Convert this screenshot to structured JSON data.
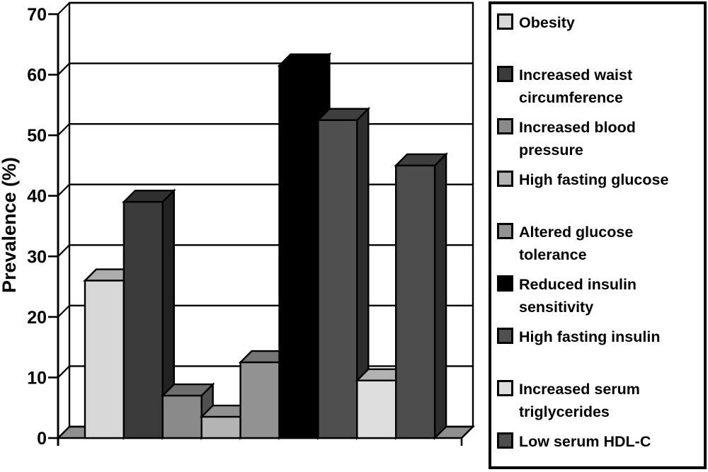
{
  "chart_data": {
    "type": "bar",
    "style": "3d-bars",
    "title": "",
    "xlabel": "",
    "ylabel": "Prevalence (%)",
    "ylim": [
      0,
      70
    ],
    "yticks": [
      0,
      10,
      20,
      30,
      40,
      50,
      60,
      70
    ],
    "grid": true,
    "legend_position": "right",
    "background_color": "#ffffff",
    "floor_color": "#8f8f8f",
    "frame_color": "#000000",
    "series": [
      {
        "label": "Obesity",
        "lines": [
          "Obesity"
        ],
        "value": 26,
        "color": "#d8d8d8"
      },
      {
        "label": "Increased waist circumference",
        "lines": [
          "Increased waist",
          "circumference"
        ],
        "value": 39,
        "color": "#3b3b3b"
      },
      {
        "label": "Increased blood pressure",
        "lines": [
          "Increased blood",
          "pressure"
        ],
        "value": 7,
        "color": "#8a8a8a"
      },
      {
        "label": "High fasting glucose",
        "lines": [
          "High fasting glucose"
        ],
        "value": 3.5,
        "color": "#b4b4b4"
      },
      {
        "label": "Altered glucose tolerance",
        "lines": [
          "Altered glucose",
          "tolerance"
        ],
        "value": 12.5,
        "color": "#929292"
      },
      {
        "label": "Reduced insulin sensitivity",
        "lines": [
          "Reduced insulin",
          "sensitivity"
        ],
        "value": 61.5,
        "color": "#000000"
      },
      {
        "label": "High fasting insulin",
        "lines": [
          "High fasting insulin"
        ],
        "value": 52.5,
        "color": "#4f4f4f"
      },
      {
        "label": "Increased serum triglycerides",
        "lines": [
          "Increased serum",
          "triglycerides"
        ],
        "value": 9.5,
        "color": "#dedede"
      },
      {
        "label": "Low serum HDL-C",
        "lines": [
          "Low serum HDL-C"
        ],
        "value": 45,
        "color": "#4d4d4d"
      }
    ]
  }
}
